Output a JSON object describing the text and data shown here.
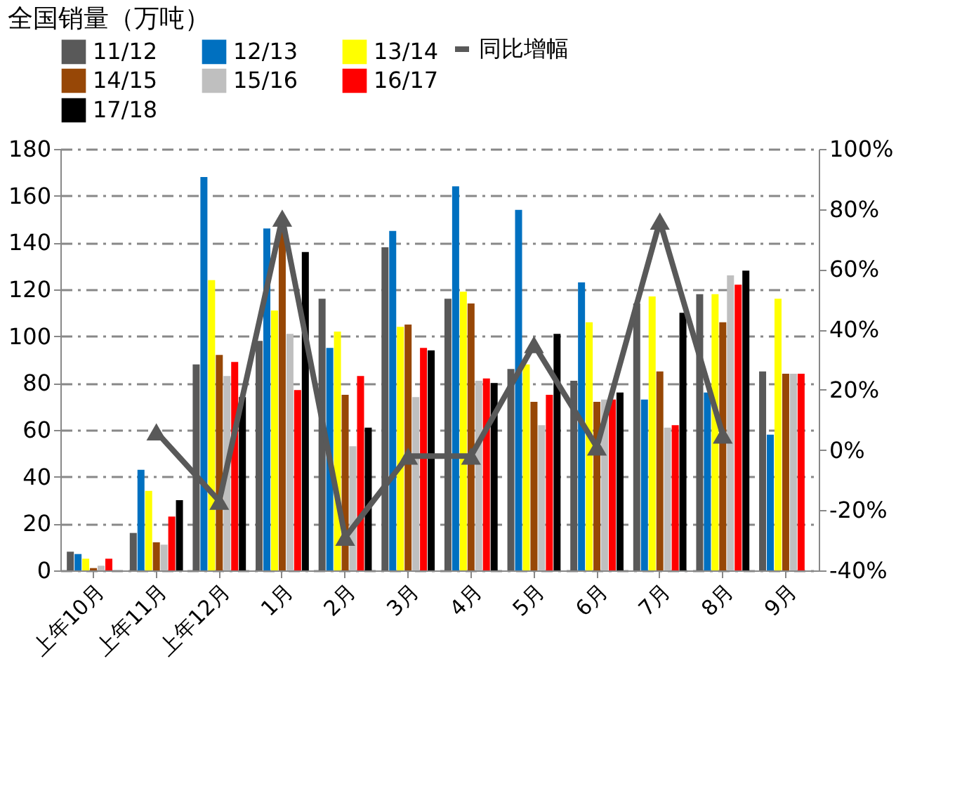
{
  "chart_data": {
    "type": "bar",
    "title": "全国销量（万吨）",
    "categories": [
      "上年10月",
      "上年11月",
      "上年12月",
      "1月",
      "2月",
      "3月",
      "4月",
      "5月",
      "6月",
      "7月",
      "8月",
      "9月"
    ],
    "series": [
      {
        "name": "11/12",
        "color": "#595959",
        "values": [
          8,
          16,
          88,
          98,
          116,
          138,
          116,
          86,
          81,
          114,
          118,
          85
        ]
      },
      {
        "name": "12/13",
        "color": "#0070c0",
        "values": [
          7,
          43,
          168,
          146,
          95,
          145,
          164,
          154,
          123,
          73,
          76,
          58
        ]
      },
      {
        "name": "13/14",
        "color": "#ffff00",
        "values": [
          5,
          34,
          124,
          111,
          102,
          104,
          119,
          88,
          106,
          117,
          118,
          116
        ]
      },
      {
        "name": "14/15",
        "color": "#974706",
        "values": [
          1,
          12,
          92,
          145,
          75,
          105,
          114,
          72,
          72,
          85,
          106,
          84
        ]
      },
      {
        "name": "15/16",
        "color": "#bfbfbf",
        "values": [
          2,
          11,
          83,
          101,
          53,
          74,
          81,
          62,
          73,
          61,
          126,
          84
        ]
      },
      {
        "name": "16/17",
        "color": "#ff0000",
        "values": [
          5,
          23,
          89,
          77,
          83,
          95,
          82,
          75,
          73,
          62,
          122,
          84
        ]
      },
      {
        "name": "17/18",
        "color": "#000000",
        "values": [
          null,
          30,
          74,
          136,
          61,
          94,
          80,
          101,
          76,
          110,
          128,
          null
        ]
      },
      {
        "name": "同比增幅",
        "type": "line",
        "axis": "y2",
        "color": "#595959",
        "marker": "triangle",
        "values": [
          null,
          6,
          -17,
          77,
          -29,
          -2,
          -2,
          35,
          1,
          76,
          5,
          null
        ]
      }
    ],
    "ylim": [
      0,
      180
    ],
    "yticks": [
      0,
      20,
      40,
      60,
      80,
      100,
      120,
      140,
      160,
      180
    ],
    "y2lim": [
      -40,
      100
    ],
    "y2ticks": [
      {
        "value": -40,
        "label": "-40%"
      },
      {
        "value": -20,
        "label": "-20%"
      },
      {
        "value": 0,
        "label": "0%"
      },
      {
        "value": 20,
        "label": "20%"
      },
      {
        "value": 40,
        "label": "40%"
      },
      {
        "value": 60,
        "label": "60%"
      },
      {
        "value": 80,
        "label": "80%"
      },
      {
        "value": 100,
        "label": "100%"
      }
    ],
    "grid": "y",
    "legend": "top"
  }
}
